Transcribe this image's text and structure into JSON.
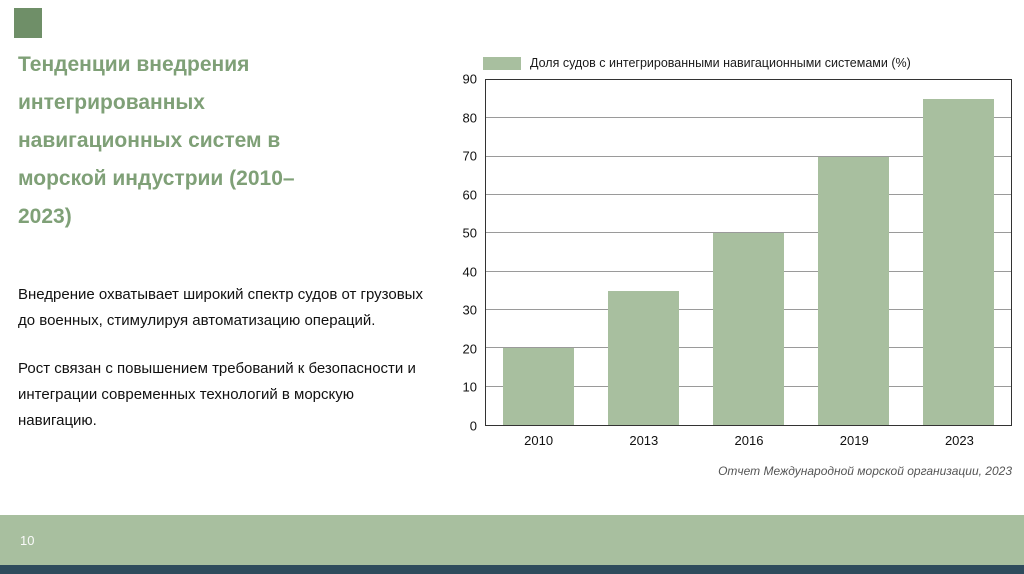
{
  "slide": {
    "title": "Тенденции внедрения интегрированных навигационных систем в морской индустрии (2010–2023)",
    "paragraphs": [
      "Внедрение охватывает широкий спектр судов от грузовых до военных, стимулируя автоматизацию операций.",
      "Рост связан с повышением требований к безопасности и интеграции современных технологий в морскую навигацию."
    ]
  },
  "chart_data": {
    "type": "bar",
    "legend": "Доля судов с интегрированными навигационными системами (%)",
    "categories": [
      "2010",
      "2013",
      "2016",
      "2019",
      "2023"
    ],
    "values": [
      20,
      35,
      50,
      70,
      85
    ],
    "ylim": [
      0,
      90
    ],
    "ytick_step": 10,
    "grid": true,
    "legend_position": "top",
    "bar_color": "#a8bf9f",
    "source": "Отчет Международной морской организации, 2023"
  },
  "footer": {
    "page_number": "10"
  },
  "colors": {
    "title_text": "#7fa077",
    "accent_square": "#6f8f68",
    "footer_band": "#a8bf9f",
    "bottom_strip": "#2e4b5c",
    "gridline": "#9a9a9a"
  }
}
